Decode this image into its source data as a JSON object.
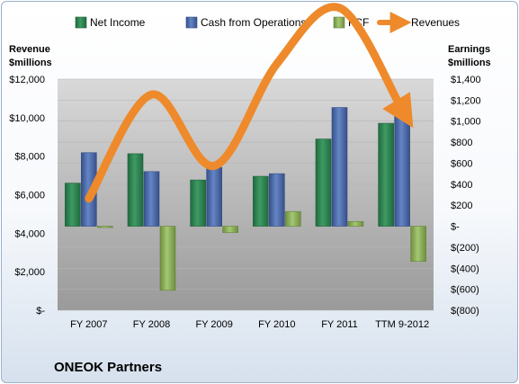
{
  "chart_data": {
    "type": "bar",
    "categories": [
      "FY 2007",
      "FY 2008",
      "FY 2009",
      "FY 2010",
      "FY 2011",
      "TTM 9-2012"
    ],
    "series": [
      {
        "name": "Net Income",
        "axis": "right",
        "kind": "bar",
        "color": "#2e8b57",
        "values": [
          410,
          690,
          440,
          475,
          830,
          980
        ]
      },
      {
        "name": "Cash from Operations",
        "axis": "right",
        "kind": "bar",
        "color": "#4f6fb0",
        "values": [
          700,
          520,
          560,
          500,
          1130,
          1105
        ]
      },
      {
        "name": "FCF",
        "axis": "right",
        "kind": "bar",
        "color": "#8fb85a",
        "values": [
          -6,
          -610,
          -60,
          140,
          45,
          -335
        ]
      },
      {
        "name": "Revenues",
        "axis": "left",
        "kind": "line",
        "color": "#ee8a2b",
        "values": [
          5800,
          11200,
          7500,
          12800,
          15700,
          10400
        ]
      }
    ],
    "left_axis": {
      "label_line1": "Revenue",
      "label_line2": "$millions",
      "min": 0,
      "max": 12000,
      "ticks": [
        {
          "value": 0,
          "label": "$-"
        },
        {
          "value": 2000,
          "label": "$2,000"
        },
        {
          "value": 4000,
          "label": "$4,000"
        },
        {
          "value": 6000,
          "label": "$6,000"
        },
        {
          "value": 8000,
          "label": "$8,000"
        },
        {
          "value": 10000,
          "label": "$10,000"
        },
        {
          "value": 12000,
          "label": "$12,000"
        }
      ]
    },
    "right_axis": {
      "label_line1": "Earnings",
      "label_line2": "$millions",
      "min": -800,
      "max": 1400,
      "ticks": [
        {
          "value": -800,
          "label": "$(800)"
        },
        {
          "value": -600,
          "label": "$(600)"
        },
        {
          "value": -400,
          "label": "$(400)"
        },
        {
          "value": -200,
          "label": "$(200)"
        },
        {
          "value": 0,
          "label": "$-"
        },
        {
          "value": 200,
          "label": "$200"
        },
        {
          "value": 400,
          "label": "$400"
        },
        {
          "value": 600,
          "label": "$600"
        },
        {
          "value": 800,
          "label": "$800"
        },
        {
          "value": 1000,
          "label": "$1,000"
        },
        {
          "value": 1200,
          "label": "$1,200"
        },
        {
          "value": 1400,
          "label": "$1,400"
        }
      ]
    },
    "legend_position": "top",
    "grid": true
  },
  "legend": {
    "net_income": "Net Income",
    "cash_ops": "Cash from Operations",
    "fcf": "FCF",
    "revenues": "Revenues"
  },
  "company_name": "ONEOK Partners"
}
